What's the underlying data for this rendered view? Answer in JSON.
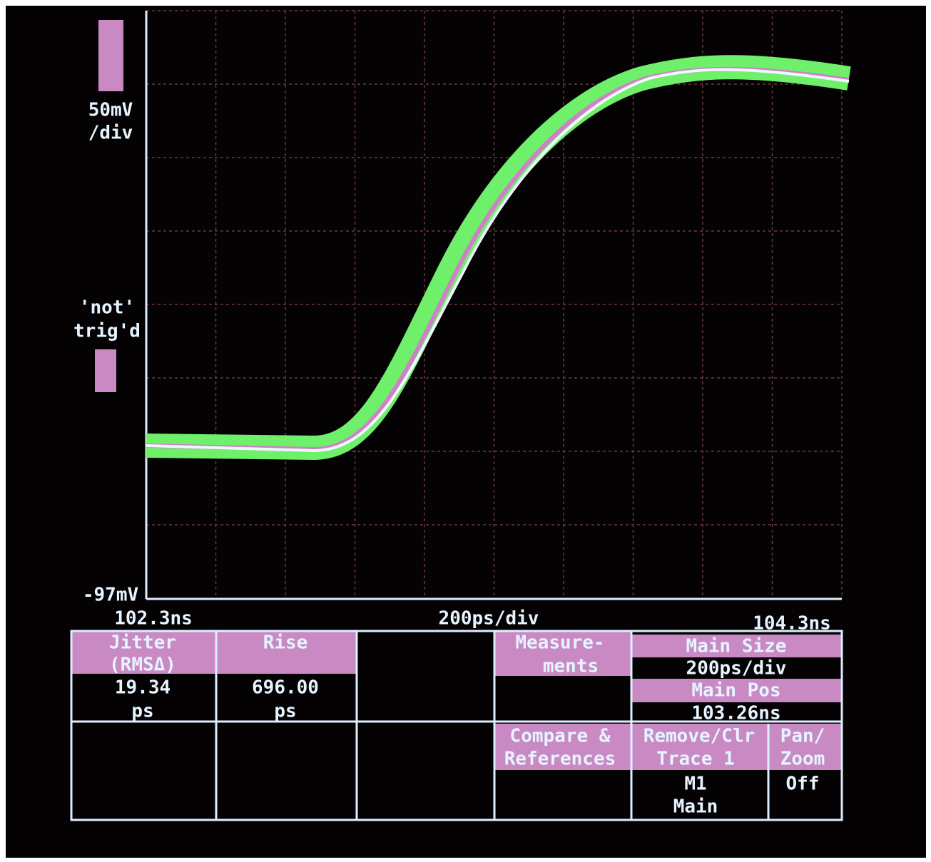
{
  "screen": {
    "volts_per_div": [
      "50mV",
      "/div"
    ],
    "trigger_status": [
      "'not'",
      "trig'd"
    ],
    "bottom_level": "-97mV",
    "time_start": "102.3ns",
    "time_per_div": "200ps/div",
    "time_end": "104.3ns"
  },
  "menu": {
    "jitter": {
      "title": [
        "Jitter",
        "(RMSΔ)"
      ],
      "value": [
        "19.34",
        "ps"
      ]
    },
    "rise": {
      "title": [
        "Rise"
      ],
      "value": [
        "696.00",
        "ps"
      ]
    },
    "measurements": {
      "title": [
        "Measure-",
        "ments"
      ]
    },
    "main_size": {
      "title": "Main Size",
      "value": "200ps/div"
    },
    "main_pos": {
      "title": "Main Pos",
      "value": "103.26ns"
    },
    "compare": {
      "title": [
        "Compare &",
        "References"
      ]
    },
    "remove": {
      "title": [
        "Remove/Clr",
        "Trace 1"
      ],
      "value": [
        "M1",
        "Main"
      ]
    },
    "pan_zoom": {
      "title": [
        "Pan/",
        "Zoom"
      ],
      "value": "Off"
    }
  }
}
